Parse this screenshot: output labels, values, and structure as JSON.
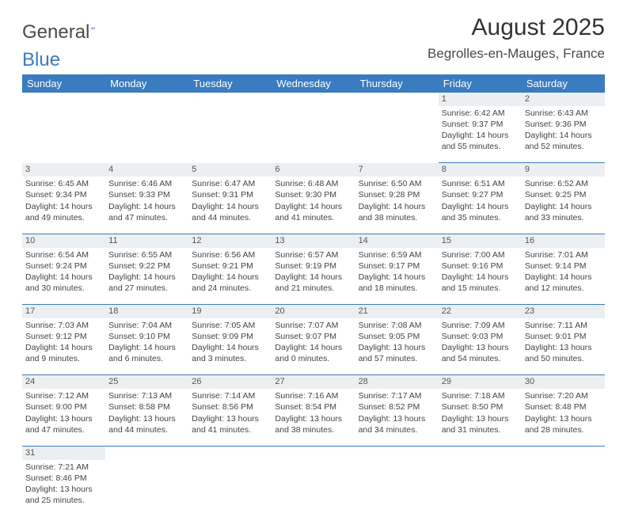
{
  "logo": {
    "first": "General",
    "second": "Blue"
  },
  "title": "August 2025",
  "location": "Begrolles-en-Mauges, France",
  "colors": {
    "header_bg": "#3b7bbf",
    "header_text": "#ffffff",
    "daynum_bg": "#eceff1",
    "body_text": "#444",
    "accent": "#3b7bbf"
  },
  "fonts": {
    "title_size": 30,
    "location_size": 17,
    "th_size": 13,
    "cell_size": 10.5
  },
  "weekdays": [
    "Sunday",
    "Monday",
    "Tuesday",
    "Wednesday",
    "Thursday",
    "Friday",
    "Saturday"
  ],
  "weeks": [
    [
      null,
      null,
      null,
      null,
      null,
      {
        "n": "1",
        "sunrise": "6:42 AM",
        "sunset": "9:37 PM",
        "dl1": "Daylight: 14 hours",
        "dl2": "and 55 minutes."
      },
      {
        "n": "2",
        "sunrise": "6:43 AM",
        "sunset": "9:36 PM",
        "dl1": "Daylight: 14 hours",
        "dl2": "and 52 minutes."
      }
    ],
    [
      {
        "n": "3",
        "sunrise": "6:45 AM",
        "sunset": "9:34 PM",
        "dl1": "Daylight: 14 hours",
        "dl2": "and 49 minutes."
      },
      {
        "n": "4",
        "sunrise": "6:46 AM",
        "sunset": "9:33 PM",
        "dl1": "Daylight: 14 hours",
        "dl2": "and 47 minutes."
      },
      {
        "n": "5",
        "sunrise": "6:47 AM",
        "sunset": "9:31 PM",
        "dl1": "Daylight: 14 hours",
        "dl2": "and 44 minutes."
      },
      {
        "n": "6",
        "sunrise": "6:48 AM",
        "sunset": "9:30 PM",
        "dl1": "Daylight: 14 hours",
        "dl2": "and 41 minutes."
      },
      {
        "n": "7",
        "sunrise": "6:50 AM",
        "sunset": "9:28 PM",
        "dl1": "Daylight: 14 hours",
        "dl2": "and 38 minutes."
      },
      {
        "n": "8",
        "sunrise": "6:51 AM",
        "sunset": "9:27 PM",
        "dl1": "Daylight: 14 hours",
        "dl2": "and 35 minutes."
      },
      {
        "n": "9",
        "sunrise": "6:52 AM",
        "sunset": "9:25 PM",
        "dl1": "Daylight: 14 hours",
        "dl2": "and 33 minutes."
      }
    ],
    [
      {
        "n": "10",
        "sunrise": "6:54 AM",
        "sunset": "9:24 PM",
        "dl1": "Daylight: 14 hours",
        "dl2": "and 30 minutes."
      },
      {
        "n": "11",
        "sunrise": "6:55 AM",
        "sunset": "9:22 PM",
        "dl1": "Daylight: 14 hours",
        "dl2": "and 27 minutes."
      },
      {
        "n": "12",
        "sunrise": "6:56 AM",
        "sunset": "9:21 PM",
        "dl1": "Daylight: 14 hours",
        "dl2": "and 24 minutes."
      },
      {
        "n": "13",
        "sunrise": "6:57 AM",
        "sunset": "9:19 PM",
        "dl1": "Daylight: 14 hours",
        "dl2": "and 21 minutes."
      },
      {
        "n": "14",
        "sunrise": "6:59 AM",
        "sunset": "9:17 PM",
        "dl1": "Daylight: 14 hours",
        "dl2": "and 18 minutes."
      },
      {
        "n": "15",
        "sunrise": "7:00 AM",
        "sunset": "9:16 PM",
        "dl1": "Daylight: 14 hours",
        "dl2": "and 15 minutes."
      },
      {
        "n": "16",
        "sunrise": "7:01 AM",
        "sunset": "9:14 PM",
        "dl1": "Daylight: 14 hours",
        "dl2": "and 12 minutes."
      }
    ],
    [
      {
        "n": "17",
        "sunrise": "7:03 AM",
        "sunset": "9:12 PM",
        "dl1": "Daylight: 14 hours",
        "dl2": "and 9 minutes."
      },
      {
        "n": "18",
        "sunrise": "7:04 AM",
        "sunset": "9:10 PM",
        "dl1": "Daylight: 14 hours",
        "dl2": "and 6 minutes."
      },
      {
        "n": "19",
        "sunrise": "7:05 AM",
        "sunset": "9:09 PM",
        "dl1": "Daylight: 14 hours",
        "dl2": "and 3 minutes."
      },
      {
        "n": "20",
        "sunrise": "7:07 AM",
        "sunset": "9:07 PM",
        "dl1": "Daylight: 14 hours",
        "dl2": "and 0 minutes."
      },
      {
        "n": "21",
        "sunrise": "7:08 AM",
        "sunset": "9:05 PM",
        "dl1": "Daylight: 13 hours",
        "dl2": "and 57 minutes."
      },
      {
        "n": "22",
        "sunrise": "7:09 AM",
        "sunset": "9:03 PM",
        "dl1": "Daylight: 13 hours",
        "dl2": "and 54 minutes."
      },
      {
        "n": "23",
        "sunrise": "7:11 AM",
        "sunset": "9:01 PM",
        "dl1": "Daylight: 13 hours",
        "dl2": "and 50 minutes."
      }
    ],
    [
      {
        "n": "24",
        "sunrise": "7:12 AM",
        "sunset": "9:00 PM",
        "dl1": "Daylight: 13 hours",
        "dl2": "and 47 minutes."
      },
      {
        "n": "25",
        "sunrise": "7:13 AM",
        "sunset": "8:58 PM",
        "dl1": "Daylight: 13 hours",
        "dl2": "and 44 minutes."
      },
      {
        "n": "26",
        "sunrise": "7:14 AM",
        "sunset": "8:56 PM",
        "dl1": "Daylight: 13 hours",
        "dl2": "and 41 minutes."
      },
      {
        "n": "27",
        "sunrise": "7:16 AM",
        "sunset": "8:54 PM",
        "dl1": "Daylight: 13 hours",
        "dl2": "and 38 minutes."
      },
      {
        "n": "28",
        "sunrise": "7:17 AM",
        "sunset": "8:52 PM",
        "dl1": "Daylight: 13 hours",
        "dl2": "and 34 minutes."
      },
      {
        "n": "29",
        "sunrise": "7:18 AM",
        "sunset": "8:50 PM",
        "dl1": "Daylight: 13 hours",
        "dl2": "and 31 minutes."
      },
      {
        "n": "30",
        "sunrise": "7:20 AM",
        "sunset": "8:48 PM",
        "dl1": "Daylight: 13 hours",
        "dl2": "and 28 minutes."
      }
    ],
    [
      {
        "n": "31",
        "sunrise": "7:21 AM",
        "sunset": "8:46 PM",
        "dl1": "Daylight: 13 hours",
        "dl2": "and 25 minutes."
      },
      null,
      null,
      null,
      null,
      null,
      null
    ]
  ]
}
